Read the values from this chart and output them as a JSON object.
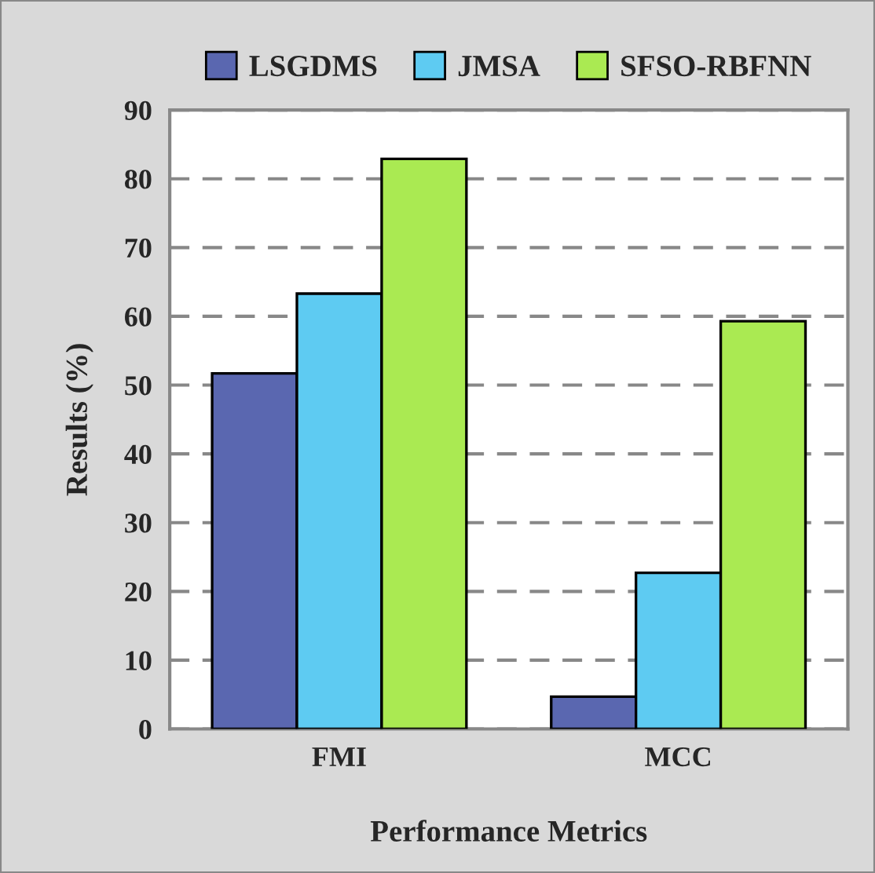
{
  "chart_data": {
    "type": "bar",
    "xlabel": "Performance Metrics",
    "ylabel": "Results (%)",
    "categories": [
      "FMI",
      "MCC"
    ],
    "series": [
      {
        "name": "LSGDMS",
        "color": "#5a67b0",
        "values": [
          51.7,
          4.7
        ]
      },
      {
        "name": "JMSA",
        "color": "#5ecbf2",
        "values": [
          63.3,
          22.7
        ]
      },
      {
        "name": "SFSO-RBFNN",
        "color": "#aaea52",
        "values": [
          82.9,
          59.3
        ]
      }
    ],
    "ylim": [
      0,
      90
    ],
    "yticks": [
      0,
      10,
      20,
      30,
      40,
      50,
      60,
      70,
      80,
      90
    ],
    "grid": "y",
    "legend": "top"
  }
}
